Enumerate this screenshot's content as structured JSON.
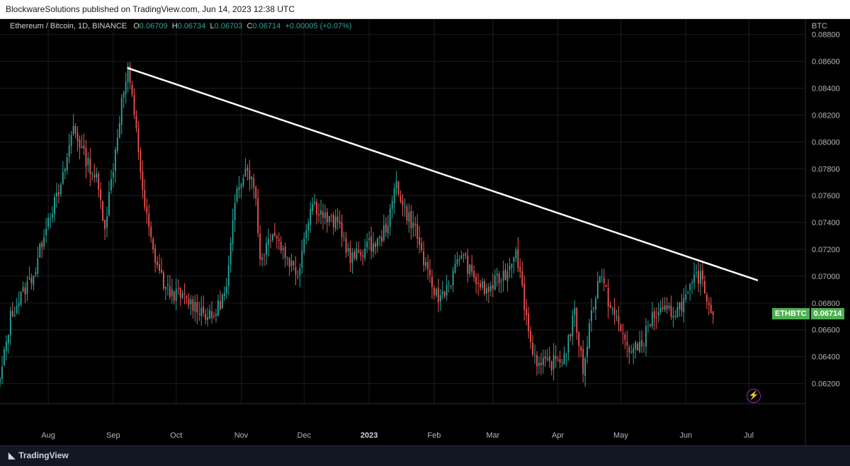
{
  "header": {
    "published_line": "BlockwareSolutions published on TradingView.com, Jun 14, 2023 12:38 UTC"
  },
  "legend": {
    "symbol_line": "Ethereum / Bitcoin, 1D, BINANCE",
    "o_label": "O",
    "o_value": "0.06709",
    "h_label": "H",
    "h_value": "0.06734",
    "l_label": "L",
    "l_value": "0.06703",
    "c_label": "C",
    "c_value": "0.06714",
    "change": "+0.00005 (+0.07%)"
  },
  "price_tag": {
    "symbol": "ETHBTC",
    "value": "0.06714"
  },
  "footer": {
    "brand": "TradingView"
  },
  "colors": {
    "up": "#26a69a",
    "down": "#ef5350",
    "trendline": "#ffffff",
    "tag": "#4caf50"
  },
  "icons": [
    "tradingview-logo-icon",
    "lightning-icon"
  ],
  "chart_data": {
    "type": "candlestick",
    "y_axis_unit": "BTC",
    "y_ticks": [
      "0.06200",
      "0.06400",
      "0.06600",
      "0.06800",
      "0.07000",
      "0.07200",
      "0.07400",
      "0.07600",
      "0.07800",
      "0.08000",
      "0.08200",
      "0.08400",
      "0.08600",
      "0.08800"
    ],
    "ylim": [
      0.0605,
      0.0892
    ],
    "x_ticks": [
      {
        "label": "Aug",
        "date": "2022-08-01"
      },
      {
        "label": "Sep",
        "date": "2022-09-01"
      },
      {
        "label": "Oct",
        "date": "2022-10-01"
      },
      {
        "label": "Nov",
        "date": "2022-11-01"
      },
      {
        "label": "Dec",
        "date": "2022-12-01"
      },
      {
        "label": "2023",
        "date": "2023-01-01",
        "bold": true
      },
      {
        "label": "Feb",
        "date": "2023-02-01"
      },
      {
        "label": "Mar",
        "date": "2023-03-01"
      },
      {
        "label": "Apr",
        "date": "2023-04-01"
      },
      {
        "label": "May",
        "date": "2023-05-01"
      },
      {
        "label": "Jun",
        "date": "2023-06-01"
      },
      {
        "label": "Jul",
        "date": "2023-07-01"
      }
    ],
    "x_range": [
      "2022-07-09",
      "2023-07-28"
    ],
    "candle_start_date": "2022-07-09",
    "close_path": [
      {
        "date": "2022-07-09",
        "close": 0.0622
      },
      {
        "date": "2022-07-14",
        "close": 0.067
      },
      {
        "date": "2022-07-20",
        "close": 0.0688
      },
      {
        "date": "2022-07-26",
        "close": 0.0705
      },
      {
        "date": "2022-07-31",
        "close": 0.074
      },
      {
        "date": "2022-08-07",
        "close": 0.0765
      },
      {
        "date": "2022-08-13",
        "close": 0.0812
      },
      {
        "date": "2022-08-18",
        "close": 0.079
      },
      {
        "date": "2022-08-24",
        "close": 0.0772
      },
      {
        "date": "2022-08-28",
        "close": 0.0738
      },
      {
        "date": "2022-09-01",
        "close": 0.0782
      },
      {
        "date": "2022-09-05",
        "close": 0.083
      },
      {
        "date": "2022-09-08",
        "close": 0.0852
      },
      {
        "date": "2022-09-12",
        "close": 0.0812
      },
      {
        "date": "2022-09-15",
        "close": 0.076
      },
      {
        "date": "2022-09-20",
        "close": 0.0718
      },
      {
        "date": "2022-09-26",
        "close": 0.069
      },
      {
        "date": "2022-10-03",
        "close": 0.0685
      },
      {
        "date": "2022-10-12",
        "close": 0.0676
      },
      {
        "date": "2022-10-18",
        "close": 0.0668
      },
      {
        "date": "2022-10-25",
        "close": 0.069
      },
      {
        "date": "2022-10-30",
        "close": 0.0768
      },
      {
        "date": "2022-11-04",
        "close": 0.0782
      },
      {
        "date": "2022-11-08",
        "close": 0.076
      },
      {
        "date": "2022-11-10",
        "close": 0.0712
      },
      {
        "date": "2022-11-16",
        "close": 0.0735
      },
      {
        "date": "2022-11-22",
        "close": 0.0716
      },
      {
        "date": "2022-11-28",
        "close": 0.0702
      },
      {
        "date": "2022-12-02",
        "close": 0.0738
      },
      {
        "date": "2022-12-05",
        "close": 0.0755
      },
      {
        "date": "2022-12-12",
        "close": 0.0742
      },
      {
        "date": "2022-12-18",
        "close": 0.0738
      },
      {
        "date": "2022-12-23",
        "close": 0.0712
      },
      {
        "date": "2022-12-31",
        "close": 0.0722
      },
      {
        "date": "2023-01-06",
        "close": 0.0726
      },
      {
        "date": "2023-01-11",
        "close": 0.0745
      },
      {
        "date": "2023-01-14",
        "close": 0.0772
      },
      {
        "date": "2023-01-17",
        "close": 0.0752
      },
      {
        "date": "2023-01-23",
        "close": 0.0735
      },
      {
        "date": "2023-01-29",
        "close": 0.07
      },
      {
        "date": "2023-02-03",
        "close": 0.0683
      },
      {
        "date": "2023-02-09",
        "close": 0.0697
      },
      {
        "date": "2023-02-14",
        "close": 0.0718
      },
      {
        "date": "2023-02-19",
        "close": 0.07
      },
      {
        "date": "2023-02-26",
        "close": 0.0688
      },
      {
        "date": "2023-03-02",
        "close": 0.0695
      },
      {
        "date": "2023-03-08",
        "close": 0.0704
      },
      {
        "date": "2023-03-12",
        "close": 0.0722
      },
      {
        "date": "2023-03-15",
        "close": 0.069
      },
      {
        "date": "2023-03-19",
        "close": 0.065
      },
      {
        "date": "2023-03-23",
        "close": 0.0633
      },
      {
        "date": "2023-03-29",
        "close": 0.0635
      },
      {
        "date": "2023-04-04",
        "close": 0.064
      },
      {
        "date": "2023-04-09",
        "close": 0.0672
      },
      {
        "date": "2023-04-13",
        "close": 0.063
      },
      {
        "date": "2023-04-17",
        "close": 0.0673
      },
      {
        "date": "2023-04-21",
        "close": 0.0702
      },
      {
        "date": "2023-04-25",
        "close": 0.0682
      },
      {
        "date": "2023-05-01",
        "close": 0.0659
      },
      {
        "date": "2023-05-06",
        "close": 0.0643
      },
      {
        "date": "2023-05-11",
        "close": 0.065
      },
      {
        "date": "2023-05-16",
        "close": 0.067
      },
      {
        "date": "2023-05-22",
        "close": 0.0673
      },
      {
        "date": "2023-05-27",
        "close": 0.0674
      },
      {
        "date": "2023-06-02",
        "close": 0.0685
      },
      {
        "date": "2023-06-06",
        "close": 0.07
      },
      {
        "date": "2023-06-09",
        "close": 0.0698
      },
      {
        "date": "2023-06-12",
        "close": 0.0678
      },
      {
        "date": "2023-06-14",
        "close": 0.0671
      }
    ],
    "trendline": {
      "from": {
        "date": "2022-09-08",
        "price": 0.0855
      },
      "to": {
        "date": "2023-07-05",
        "price": 0.0697
      }
    },
    "last_price": 0.06714
  }
}
